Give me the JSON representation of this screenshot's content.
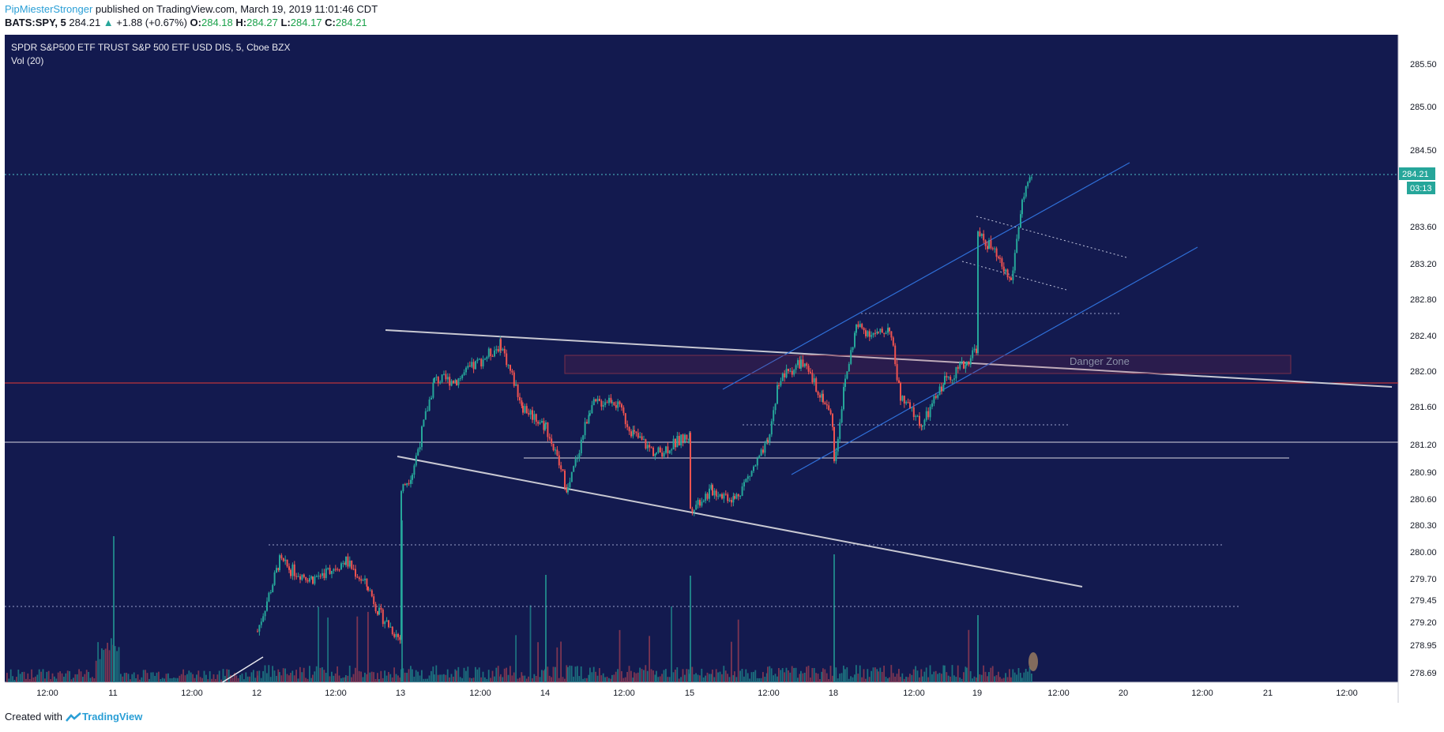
{
  "header": {
    "author": "PipMiesterStronger",
    "published_text": "published on TradingView.com, March 19, 2019 11:01:46 CDT",
    "symbol": "BATS:SPY, 5",
    "last": "284.21",
    "change": "+1.88 (+0.67%)",
    "o_label": "O:",
    "o": "284.18",
    "h_label": "H:",
    "h": "284.27",
    "l_label": "L:",
    "l": "284.17",
    "c_label": "C:",
    "c": "284.21"
  },
  "legend": {
    "title": "SPDR S&P500 ETF TRUST S&P 500 ETF USD DIS, 5, Cboe BZX",
    "indicator": "Vol (20)"
  },
  "footer": {
    "created_with": "Created with",
    "brand": "TradingView"
  },
  "colors": {
    "background": "#131a4f",
    "up": "#26a69a",
    "down": "#ef5350",
    "trendline": "#c8c8d2",
    "channel": "#2f6fd8",
    "last_price_badge": "#26a69a",
    "red_level": "#e53935"
  },
  "chart_data": {
    "type": "candlestick",
    "title": "SPDR S&P500 ETF TRUST S&P 500 ETF USD DIS, 5, Cboe BZX",
    "y_ticks": [
      "285.50",
      "285.00",
      "284.50",
      "283.60",
      "283.20",
      "282.80",
      "282.40",
      "282.00",
      "281.60",
      "281.20",
      "280.90",
      "280.60",
      "280.30",
      "280.00",
      "279.70",
      "279.45",
      "279.20",
      "278.95",
      "278.69"
    ],
    "x_ticks": [
      "12:00",
      "11",
      "12:00",
      "12",
      "12:00",
      "13",
      "12:00",
      "14",
      "12:00",
      "15",
      "12:00",
      "18",
      "12:00",
      "19",
      "12:00",
      "20",
      "12:00",
      "21",
      "12:00"
    ],
    "last_price": 284.21,
    "countdown": "03:13",
    "annotations": [
      "Danger Zone"
    ],
    "price_path": [
      {
        "t": "12 09:30",
        "p": 279.1
      },
      {
        "t": "12 10:30",
        "p": 279.9
      },
      {
        "t": "12 11:00",
        "p": 279.8
      },
      {
        "t": "12 12:00",
        "p": 279.7
      },
      {
        "t": "12 13:30",
        "p": 279.9
      },
      {
        "t": "12 14:30",
        "p": 279.6
      },
      {
        "t": "12 15:00",
        "p": 279.3
      },
      {
        "t": "12 16:00",
        "p": 279.0
      },
      {
        "t": "13 09:30",
        "p": 280.7
      },
      {
        "t": "13 10:00",
        "p": 280.9
      },
      {
        "t": "13 11:00",
        "p": 281.9
      },
      {
        "t": "13 12:00",
        "p": 281.9
      },
      {
        "t": "13 14:00",
        "p": 282.3
      },
      {
        "t": "13 15:00",
        "p": 281.6
      },
      {
        "t": "13 16:00",
        "p": 281.4
      },
      {
        "t": "14 09:30",
        "p": 281.4
      },
      {
        "t": "14 10:30",
        "p": 280.7
      },
      {
        "t": "14 11:30",
        "p": 281.6
      },
      {
        "t": "14 12:30",
        "p": 281.7
      },
      {
        "t": "14 13:30",
        "p": 281.3
      },
      {
        "t": "14 14:30",
        "p": 281.1
      },
      {
        "t": "14 16:00",
        "p": 281.3
      },
      {
        "t": "15 09:30",
        "p": 280.5
      },
      {
        "t": "15 10:30",
        "p": 280.7
      },
      {
        "t": "15 11:30",
        "p": 280.6
      },
      {
        "t": "15 13:00",
        "p": 281.2
      },
      {
        "t": "15 13:30",
        "p": 281.9
      },
      {
        "t": "15 14:30",
        "p": 282.1
      },
      {
        "t": "15 15:30",
        "p": 281.7
      },
      {
        "t": "15 16:00",
        "p": 281.4
      },
      {
        "t": "18 09:30",
        "p": 281.0
      },
      {
        "t": "18 10:00",
        "p": 281.9
      },
      {
        "t": "18 10:30",
        "p": 282.5
      },
      {
        "t": "18 11:30",
        "p": 282.4
      },
      {
        "t": "18 12:00",
        "p": 282.5
      },
      {
        "t": "18 12:30",
        "p": 281.7
      },
      {
        "t": "18 13:30",
        "p": 281.4
      },
      {
        "t": "18 14:30",
        "p": 281.9
      },
      {
        "t": "18 15:30",
        "p": 282.1
      },
      {
        "t": "18 16:00",
        "p": 282.3
      },
      {
        "t": "19 09:30",
        "p": 283.5
      },
      {
        "t": "19 10:00",
        "p": 283.4
      },
      {
        "t": "19 10:30",
        "p": 283.2
      },
      {
        "t": "19 11:00",
        "p": 283.0
      },
      {
        "t": "19 11:30",
        "p": 283.9
      },
      {
        "t": "19 12:00",
        "p": 284.21
      }
    ]
  }
}
